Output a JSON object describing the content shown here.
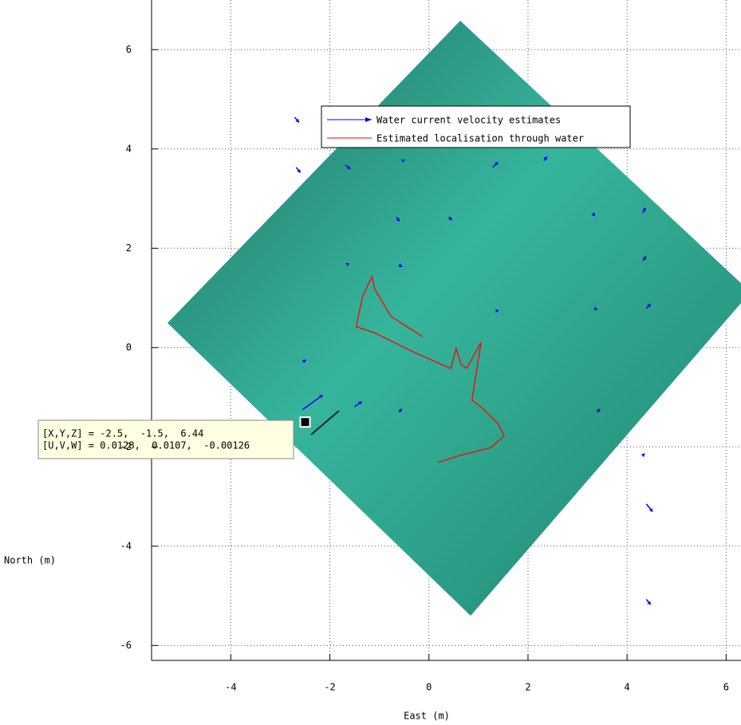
{
  "chart_data": {
    "type": "quiver",
    "xlabel": "East (m)",
    "ylabel": "North (m)",
    "xlim": [
      -5.6,
      6.3
    ],
    "ylim": [
      -6.3,
      7.0
    ],
    "xticks": [
      -4,
      -2,
      0,
      2,
      4,
      6
    ],
    "yticks": [
      -6,
      -4,
      -2,
      0,
      2,
      4,
      6
    ],
    "grid": true,
    "legend": "top",
    "series": [
      {
        "name": "Water current velocity estimates",
        "type": "quiver",
        "color": "#0000ff",
        "x": [
          -2.71,
          -2.68,
          -1.69,
          1.29,
          2.32,
          -0.66,
          0.4,
          3.31,
          4.31,
          4.32,
          -1.66,
          -0.61,
          1.35,
          3.34,
          4.39,
          -2.55,
          -1.5,
          -0.61,
          3.39,
          4.39,
          4.39,
          -0.53,
          4.31,
          -2.55
        ],
        "y": [
          4.64,
          3.63,
          3.68,
          3.63,
          3.76,
          2.63,
          2.63,
          2.71,
          2.71,
          1.75,
          1.67,
          1.67,
          0.74,
          0.79,
          0.79,
          -0.29,
          -1.19,
          -1.3,
          -1.3,
          -3.15,
          -5.07,
          3.76,
          -2.18,
          -1.25
        ],
        "u": [
          0.08,
          0.08,
          0.1,
          0.1,
          0.06,
          0.06,
          0.06,
          0.03,
          0.06,
          0.06,
          0.04,
          0.06,
          0.05,
          0.05,
          0.08,
          0.06,
          0.14,
          0.06,
          0.06,
          0.12,
          0.08,
          0.03,
          0.04,
          0.4
        ],
        "v": [
          -0.1,
          -0.1,
          -0.08,
          0.1,
          0.08,
          -0.08,
          -0.06,
          -0.06,
          0.1,
          0.08,
          0.02,
          -0.04,
          0.0,
          -0.02,
          0.08,
          0.04,
          0.1,
          0.06,
          0.06,
          -0.15,
          -0.1,
          0.02,
          0.04,
          0.29
        ]
      },
      {
        "name": "Estimated localisation through water",
        "type": "line",
        "color": "#ff0000",
        "x": [
          -0.13,
          -0.77,
          -1.1,
          -1.15,
          -1.34,
          -1.47,
          -1.1,
          -0.29,
          0.44,
          0.55,
          0.65,
          0.76,
          1.05,
          0.97,
          0.87,
          1.08,
          1.4,
          1.52,
          1.24,
          0.6,
          0.19
        ],
        "y": [
          0.22,
          0.63,
          1.19,
          1.43,
          1.03,
          0.42,
          0.3,
          -0.1,
          -0.42,
          -0.02,
          -0.34,
          -0.42,
          0.1,
          -0.42,
          -1.06,
          -1.22,
          -1.54,
          -1.78,
          -2.02,
          -2.18,
          -2.31
        ]
      }
    ],
    "datatip": {
      "x": -2.5,
      "y": -1.5,
      "lines": [
        "[X,Y,Z] = -2.5,  -1.5,  6.44",
        "[U,V,W] = 0.0128,  0.0107,  -0.00126"
      ]
    }
  }
}
